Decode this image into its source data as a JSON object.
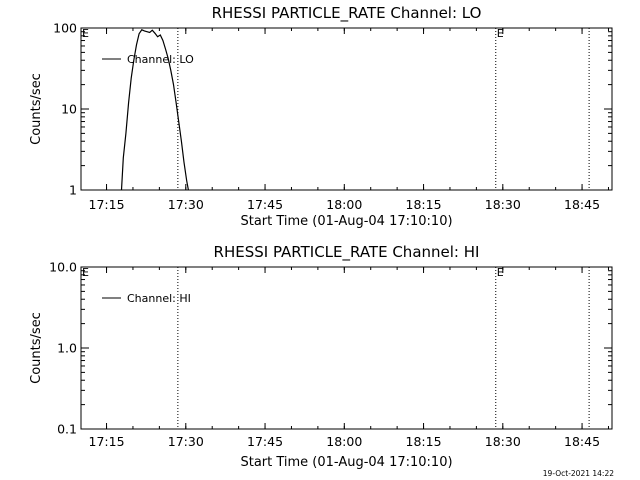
{
  "chart_data": [
    {
      "type": "line",
      "title": "RHESSI PARTICLE_RATE Channel: LO",
      "xlabel": "Start Time (01-Aug-04 17:10:10)",
      "ylabel": "Counts/sec",
      "yscale": "log",
      "ylim": [
        1,
        100
      ],
      "xlim": [
        "17:10:10",
        "18:50:40"
      ],
      "x_ticks": [
        "17:15",
        "17:30",
        "17:45",
        "18:00",
        "18:15",
        "18:30",
        "18:45"
      ],
      "y_ticks": [
        "1",
        "10",
        "100"
      ],
      "legend": {
        "label": "Channel: LO",
        "position": "top-left"
      },
      "markers": [
        {
          "label": "E",
          "x": "17:10:10",
          "line": false
        },
        {
          "label": "",
          "x": "17:28:30",
          "line": true
        },
        {
          "label": "E",
          "x": "18:28:40",
          "line": true
        },
        {
          "label": "",
          "x": "18:46:20",
          "line": true
        }
      ],
      "series": [
        {
          "name": "Channel: LO",
          "x": [
            "17:17:50",
            "17:18:10",
            "17:18:40",
            "17:19:10",
            "17:19:40",
            "17:20:10",
            "17:20:40",
            "17:21:10",
            "17:21:40",
            "17:22:10",
            "17:22:40",
            "17:23:10",
            "17:23:40",
            "17:24:10",
            "17:24:40",
            "17:25:10",
            "17:25:40",
            "17:26:10",
            "17:26:40",
            "17:27:10",
            "17:27:40",
            "17:28:10",
            "17:28:40",
            "17:29:10",
            "17:29:40",
            "17:30:10",
            "17:30:30"
          ],
          "values": [
            1,
            2.5,
            5,
            12,
            24,
            40,
            62,
            85,
            95,
            92,
            90,
            88,
            94,
            86,
            78,
            82,
            70,
            55,
            42,
            30,
            20,
            12,
            7,
            4,
            2.2,
            1.3,
            1
          ]
        }
      ]
    },
    {
      "type": "line",
      "title": "RHESSI PARTICLE_RATE Channel: HI",
      "xlabel": "Start Time (01-Aug-04 17:10:10)",
      "ylabel": "Counts/sec",
      "yscale": "log",
      "ylim": [
        0.1,
        10
      ],
      "xlim": [
        "17:10:10",
        "18:50:40"
      ],
      "x_ticks": [
        "17:15",
        "17:30",
        "17:45",
        "18:00",
        "18:15",
        "18:30",
        "18:45"
      ],
      "y_ticks": [
        "0.1",
        "1.0",
        "10.0"
      ],
      "legend": {
        "label": "Channel: HI",
        "position": "top-left"
      },
      "markers": [
        {
          "label": "E",
          "x": "17:10:10",
          "line": false
        },
        {
          "label": "",
          "x": "17:28:30",
          "line": true
        },
        {
          "label": "E",
          "x": "18:28:40",
          "line": true
        },
        {
          "label": "",
          "x": "18:46:20",
          "line": true
        }
      ],
      "series": [
        {
          "name": "Channel: HI",
          "x": [],
          "values": []
        }
      ]
    }
  ],
  "footer": {
    "timestamp": "19-Oct-2021 14:22"
  }
}
